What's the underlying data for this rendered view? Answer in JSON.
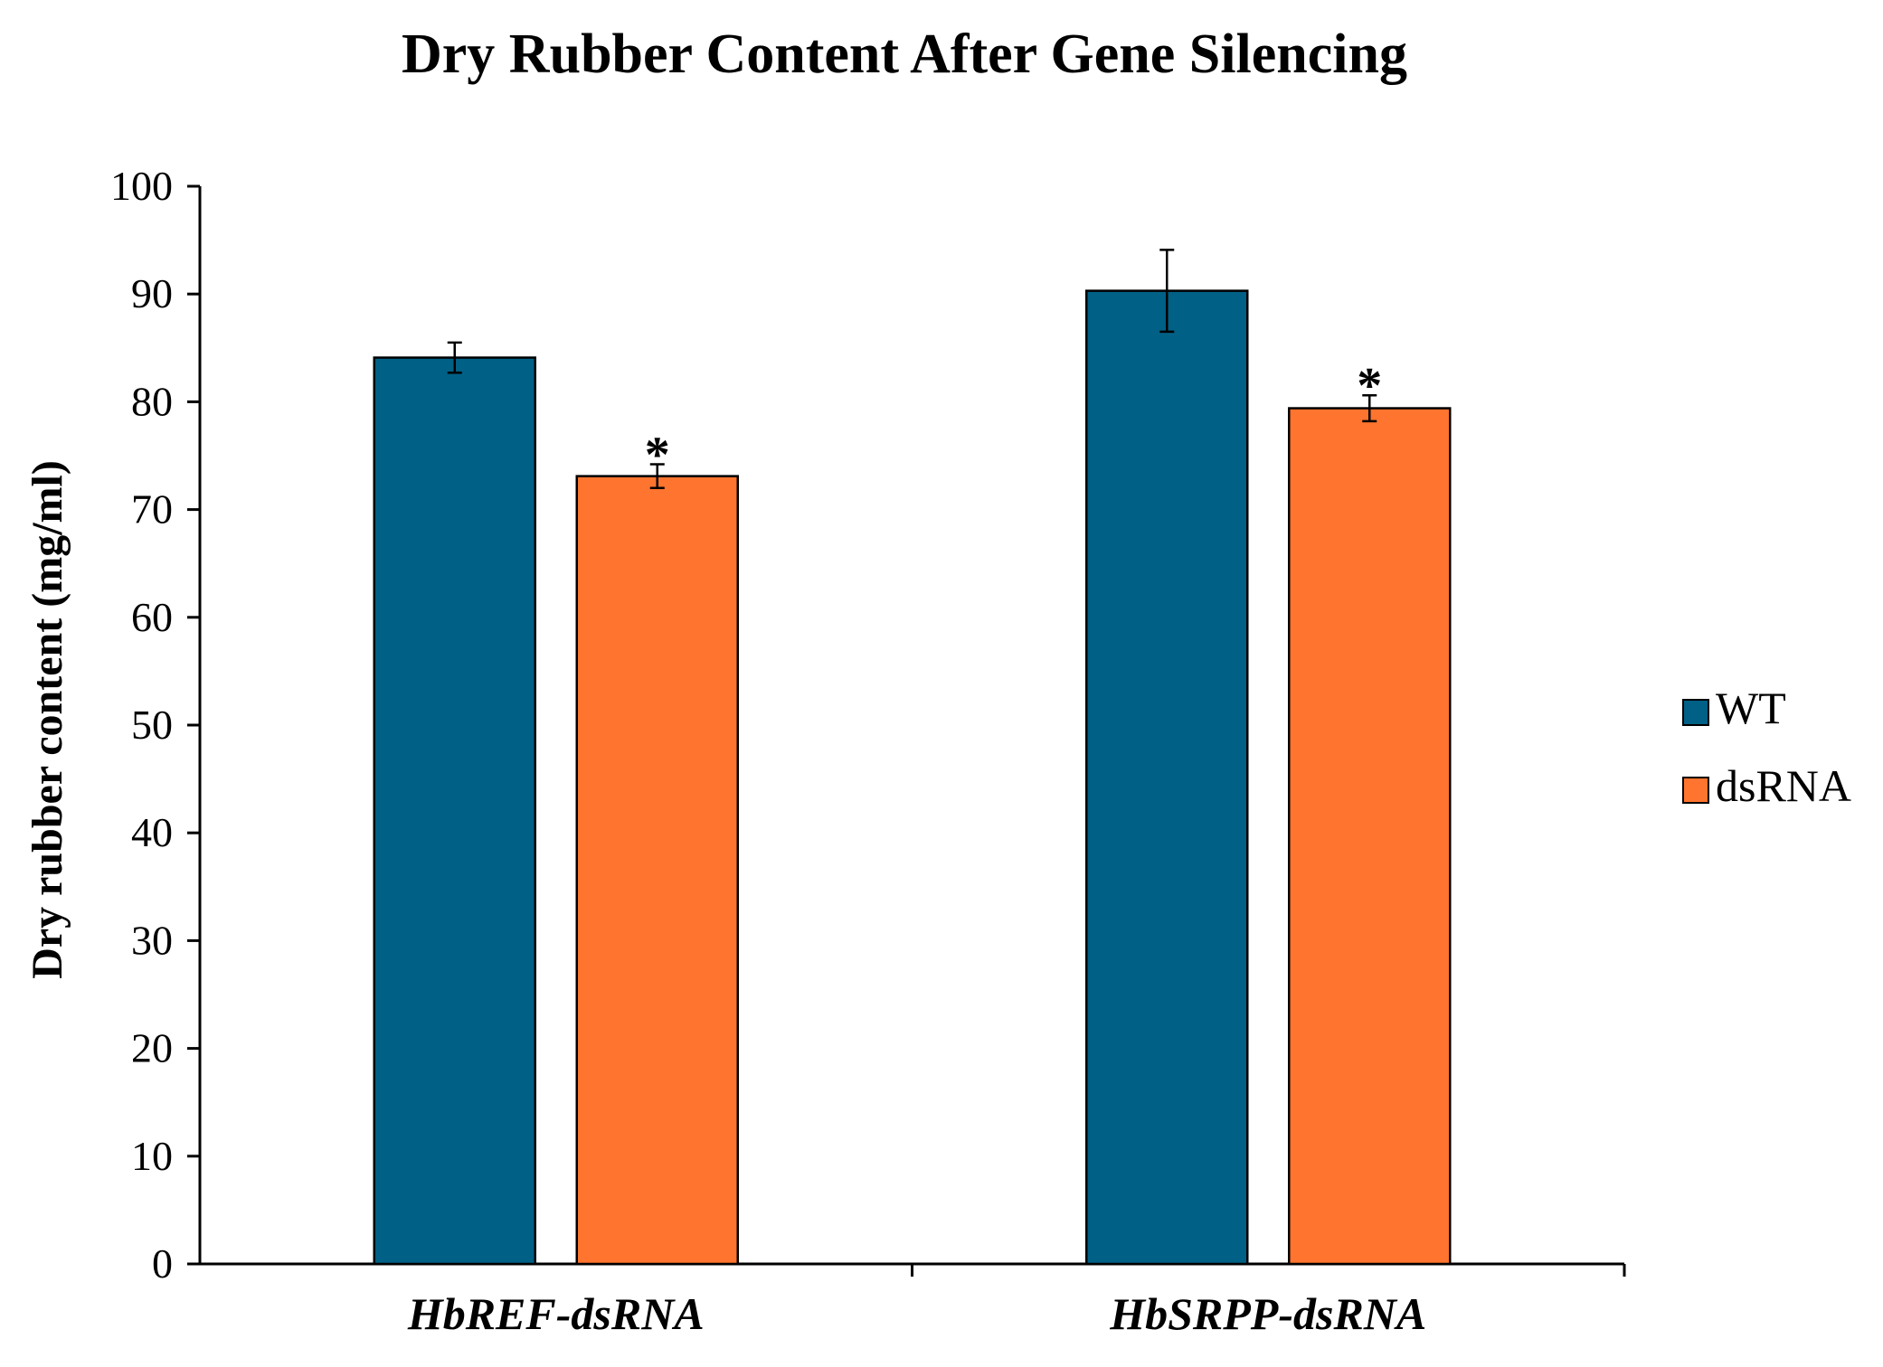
{
  "chart_data": {
    "type": "bar",
    "title": "Dry Rubber Content After Gene Silencing",
    "xlabel": "",
    "ylabel": "Dry rubber content (mg/ml)",
    "ylim": [
      0,
      100
    ],
    "yticks": [
      "0",
      "10",
      "20",
      "30",
      "40",
      "50",
      "60",
      "70",
      "80",
      "90",
      "100"
    ],
    "categories": [
      "HbREF-dsRNA",
      "HbSRPP-dsRNA"
    ],
    "series": [
      {
        "name": "WT",
        "color": "#006085",
        "values": [
          84.1,
          90.3
        ],
        "errors": [
          1.4,
          3.8
        ],
        "significance": [
          "",
          ""
        ]
      },
      {
        "name": "dsRNA",
        "color": "#FF742E",
        "values": [
          73.1,
          79.4
        ],
        "errors": [
          1.1,
          1.2
        ],
        "significance": [
          "*",
          "*"
        ]
      }
    ],
    "legend_position": "right",
    "grid": false
  }
}
